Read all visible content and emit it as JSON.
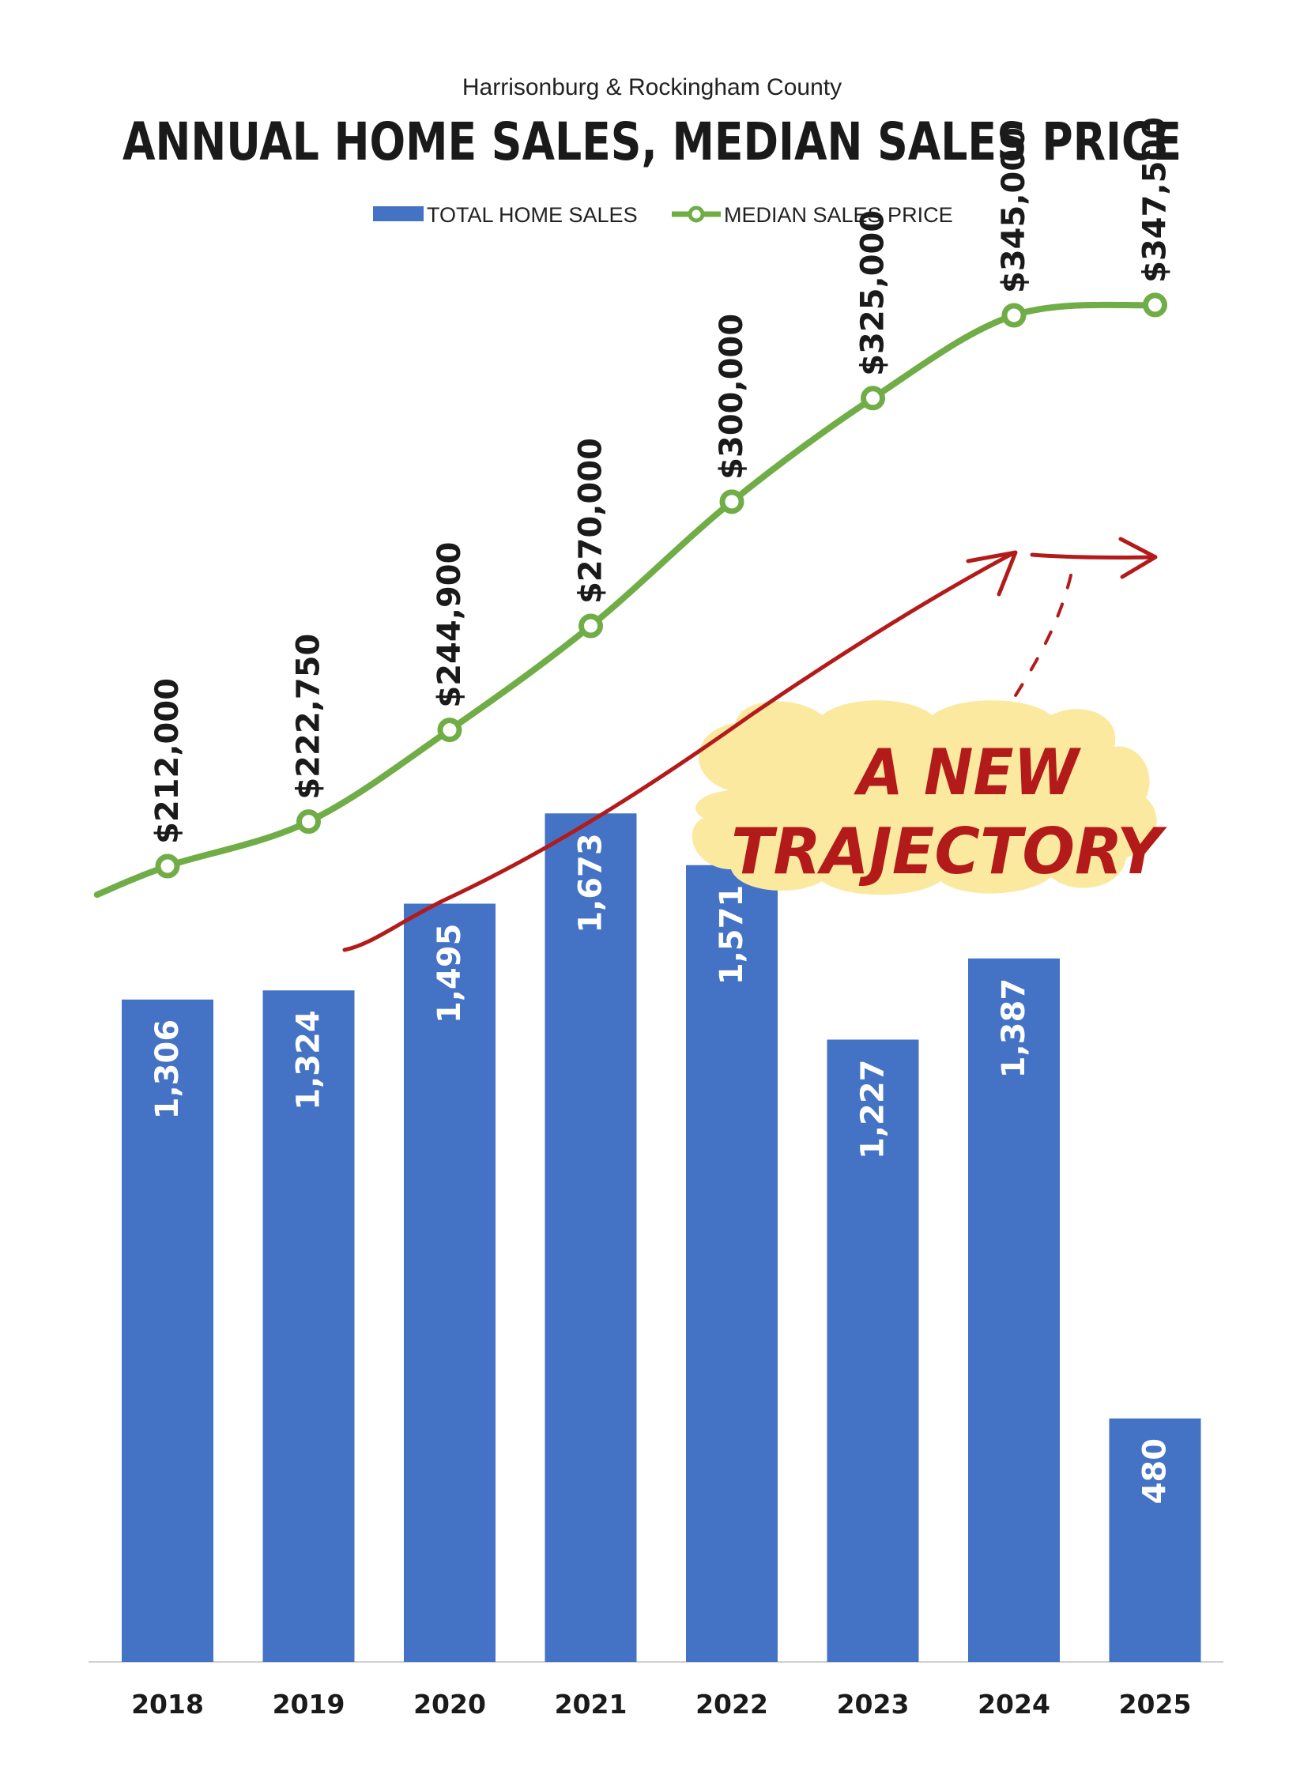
{
  "chart_data": {
    "type": "bar",
    "subtitle": "Harrisonburg & Rockingham County",
    "title": "ANNUAL HOME SALES, MEDIAN SALES PRICE",
    "categories": [
      "2018",
      "2019",
      "2020",
      "2021",
      "2022",
      "2023",
      "2024",
      "2025"
    ],
    "series": [
      {
        "name": "TOTAL HOME SALES",
        "type": "bar",
        "color": "#4472c4",
        "values": [
          1306,
          1324,
          1495,
          1673,
          1571,
          1227,
          1387,
          480
        ],
        "labels": [
          "1,306",
          "1,324",
          "1,495",
          "1,673",
          "1,571",
          "1,227",
          "1,387",
          "480"
        ]
      },
      {
        "name": "MEDIAN SALES PRICE",
        "type": "line",
        "color": "#70ad47",
        "values": [
          212000,
          222750,
          244900,
          270000,
          300000,
          325000,
          345000,
          347500
        ],
        "labels": [
          "$212,000",
          "$222,750",
          "$244,900",
          "$270,000",
          "$300,000",
          "$325,000",
          "$345,000",
          "$347,500"
        ]
      }
    ],
    "legend_position": "top-center",
    "grid": false,
    "annotation": {
      "line1": "A NEW",
      "line2": "TRAJECTORY",
      "color": "#b31b1b",
      "highlight": "#fbe9a0"
    }
  }
}
